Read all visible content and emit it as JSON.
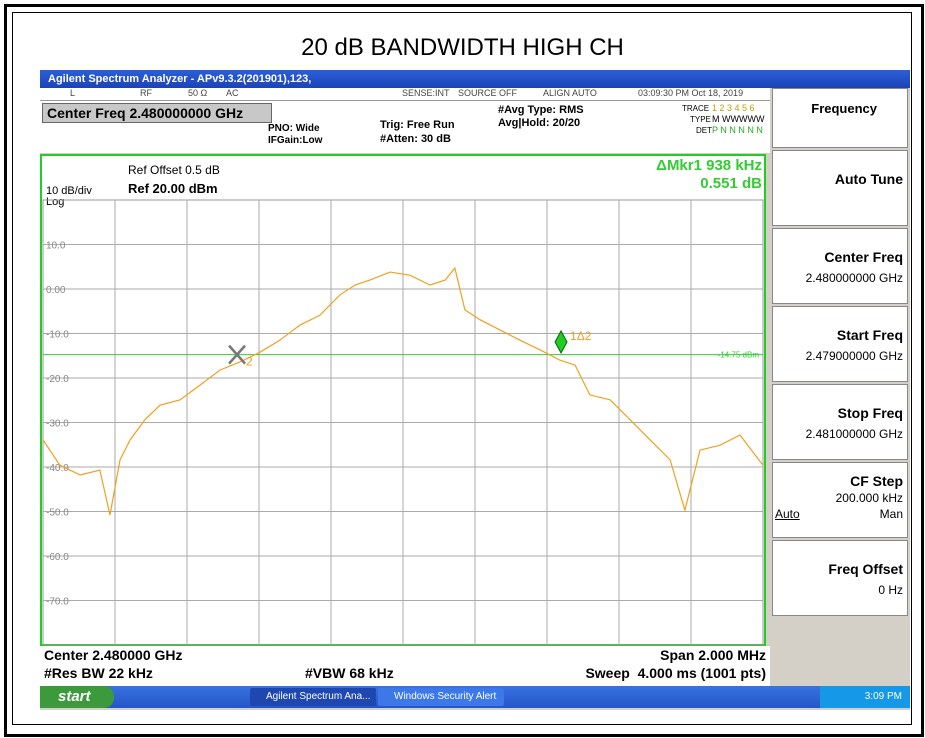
{
  "title": "20 dB BANDWIDTH HIGH CH",
  "window": {
    "title": "Agilent Spectrum Analyzer - APv9.3.2(201901),123,",
    "status": [
      "L",
      "RF",
      "50 Ω",
      "AC",
      "SENSE:INT",
      "SOURCE OFF",
      "ALIGN AUTO",
      "03:09:30 PM Oct 18, 2019"
    ],
    "header": {
      "center_freq": "Center Freq 2.480000000 GHz",
      "pno": "PNO: Wide",
      "ifgain": "IFGain:Low",
      "trig": "Trig: Free Run",
      "atten": "#Atten: 30 dB",
      "avg_type": "#Avg Type: RMS",
      "avg_hold": "Avg|Hold: 20/20",
      "trace_label": "TRACE",
      "trace": "1 2 3 4 5 6",
      "type_label": "TYPE",
      "type": "M WWWWW",
      "det_label": "DET",
      "det": "P N N N N N"
    },
    "bottom": {
      "center": "Center 2.480000 GHz",
      "span": "Span 2.000 MHz",
      "rbw": "#Res BW 22 kHz",
      "vbw": "#VBW 68 kHz",
      "sweep": "Sweep  4.000 ms (1001 pts)"
    },
    "softkeys": {
      "title": "Frequency",
      "auto_tune": "Auto Tune",
      "center": "Center Freq",
      "center_value": "2.480000000 GHz",
      "start": "Start Freq",
      "start_value": "2.479000000 GHz",
      "stop": "Stop Freq",
      "stop_value": "2.481000000 GHz",
      "cf_step": "CF Step",
      "cf_step_value": "200.000 kHz",
      "auto": "Auto",
      "man": "Man",
      "offset": "Freq Offset",
      "offset_value": "0 Hz"
    },
    "taskbar": {
      "start": "start",
      "task1": "Agilent Spectrum Ana...",
      "task2": "Windows Security Alert",
      "clock": "3:09 PM"
    }
  },
  "chart_data": {
    "type": "line",
    "ref_offset": "Ref Offset 0.5 dB",
    "scale": "10 dB/div",
    "scale_type": "Log",
    "ref_level": "Ref 20.00 dBm",
    "marker_readout": "ΔMkr1 938 kHz",
    "marker_delta": "0.551 dB",
    "xlim": [
      -1000,
      1000
    ],
    "ylim": [
      -80,
      20
    ],
    "xticks": [
      -800,
      -600,
      -400,
      -200,
      0,
      200,
      400,
      600,
      800
    ],
    "yticks": [
      {
        "value": 10,
        "label": "10.0"
      },
      {
        "value": 0,
        "label": "0.00"
      },
      {
        "value": -10,
        "label": "-10.0"
      },
      {
        "value": -20,
        "label": "-20.0"
      },
      {
        "value": -30,
        "label": "-30.0"
      },
      {
        "value": -40,
        "label": "-40.0"
      },
      {
        "value": -50,
        "label": "-50.0"
      },
      {
        "value": -60,
        "label": "-60.0"
      },
      {
        "value": -70,
        "label": "-70.0"
      }
    ],
    "grid": true,
    "display_line": {
      "value": -14.75,
      "label": "-14.75 dBm",
      "color": "#33cc33"
    },
    "series": [
      {
        "color": "#f0a020",
        "x": [
          -1000,
          -953,
          -897,
          -842,
          -814,
          -786,
          -758,
          -717,
          -675,
          -619,
          -564,
          -508,
          -453,
          -397,
          -342,
          -286,
          -231,
          -175,
          -133,
          -92,
          -36,
          19,
          75,
          117,
          144,
          172,
          214,
          269,
          325,
          381,
          436,
          478,
          519,
          575,
          631,
          686,
          742,
          783,
          825,
          881,
          936,
          1000
        ],
        "values": [
          -33.9,
          -39.6,
          -41.8,
          -40.7,
          -50.8,
          -38.4,
          -33.9,
          -29.4,
          -26.1,
          -24.9,
          -21.6,
          -18.2,
          -16.4,
          -14.2,
          -11.5,
          -8.1,
          -5.9,
          -1.3,
          0.9,
          2.0,
          3.8,
          3.1,
          0.9,
          2.0,
          4.7,
          -4.7,
          -6.9,
          -9.2,
          -11.5,
          -13.7,
          -16.0,
          -17.1,
          -23.8,
          -24.9,
          -29.4,
          -33.9,
          -38.4,
          -49.7,
          -36.2,
          -35.1,
          -32.8,
          -39.6
        ]
      }
    ],
    "markers": [
      {
        "label": "2",
        "x": -461,
        "y": -14.75,
        "color": "#cccccc"
      },
      {
        "label": "1Δ2",
        "x": 439,
        "y": -11.9,
        "color": "#22cc22"
      }
    ]
  }
}
